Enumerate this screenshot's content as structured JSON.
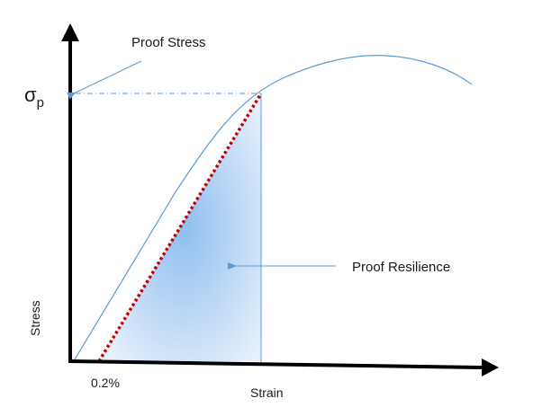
{
  "labels": {
    "sigma": "σ",
    "sigma_sub": "p",
    "proof_stress": "Proof Stress",
    "proof_resilience": "Proof Resilience",
    "stress": "Stress",
    "strain": "Strain",
    "offset": "0.2%"
  },
  "colors": {
    "axis": "#000000",
    "curve": "#5b9bd5",
    "offset_line": "#c00000",
    "shade_inner": "#8fbef0",
    "shade_outer": "#e6f0fb",
    "leader": "#5b9bd5"
  }
}
